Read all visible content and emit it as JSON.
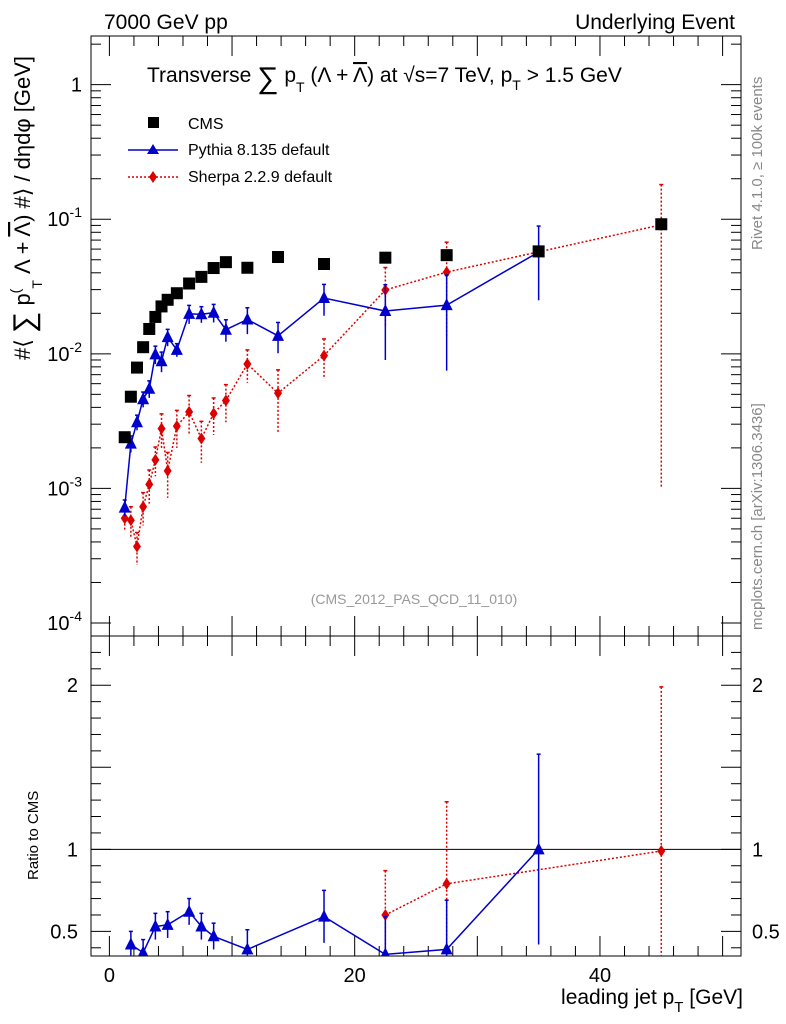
{
  "header": {
    "energy": "7000 GeV pp",
    "process": "Underlying Event"
  },
  "side_labels": {
    "rivet": "Rivet 4.1.0, ≥ 100k events",
    "source": "mcplots.cern.ch [arXiv:1306.3436]"
  },
  "chart_data": [
    {
      "type": "scatter",
      "title": "Transverse ∑ pT (Λ + Λ̅) at √s=7 TeV, pT > 1.5 GeV",
      "ylabel": "#⟨ ∑ pT (Λ + Λ̅) #⟩ / dηdφ [GeV]",
      "xlabel": "",
      "xlim": [
        -1.5,
        51.5
      ],
      "ylim": [
        8e-05,
        2.3
      ],
      "yscale": "log",
      "annotation": "(CMS_2012_PAS_QCD_11_010)",
      "yticks": [
        {
          "value": 1,
          "mant": "1",
          "exp": ""
        },
        {
          "value": 0.1,
          "mant": "10",
          "exp": "-1"
        },
        {
          "value": 0.01,
          "mant": "10",
          "exp": "-2"
        },
        {
          "value": 0.001,
          "mant": "10",
          "exp": "-3"
        },
        {
          "value": 0.0001,
          "mant": "10",
          "exp": "-4"
        }
      ],
      "series": [
        {
          "name": "CMS",
          "style": "square",
          "color": "#000000",
          "line": "none",
          "x": [
            1.25,
            1.75,
            2.25,
            2.75,
            3.25,
            3.75,
            4.25,
            4.75,
            5.5,
            6.5,
            7.5,
            8.5,
            9.5,
            11.25,
            13.75,
            17.5,
            22.5,
            27.5,
            35,
            45
          ],
          "y": [
            0.0024,
            0.0048,
            0.0079,
            0.0112,
            0.0153,
            0.0188,
            0.0225,
            0.0252,
            0.0282,
            0.0333,
            0.0373,
            0.0434,
            0.048,
            0.0436,
            0.0524,
            0.0465,
            0.0518,
            0.0541,
            0.0577,
            0.0918
          ],
          "err": [
            0,
            0,
            0,
            0,
            0,
            0,
            0,
            0,
            0,
            0,
            0,
            0,
            0,
            0,
            0,
            0,
            0,
            0,
            0,
            0
          ]
        },
        {
          "name": "Pythia 8.135 default",
          "style": "triangle",
          "color": "#0000cc",
          "line": "solid",
          "x": [
            1.25,
            1.75,
            2.25,
            2.75,
            3.25,
            3.75,
            4.25,
            4.75,
            5.5,
            6.5,
            7.5,
            8.5,
            9.5,
            11.25,
            13.75,
            17.5,
            22.5,
            27.5,
            35
          ],
          "y": [
            0.00072,
            0.00215,
            0.0031,
            0.0046,
            0.0055,
            0.0099,
            0.0088,
            0.0133,
            0.0107,
            0.0198,
            0.0197,
            0.0202,
            0.0151,
            0.018,
            0.0136,
            0.026,
            0.0208,
            0.023,
            0.057
          ],
          "err": [
            0.0001,
            0.0003,
            0.0004,
            0.0006,
            0.0008,
            0.0015,
            0.0015,
            0.0019,
            0.0012,
            0.0031,
            0.0027,
            0.0031,
            0.0028,
            0.004,
            0.0035,
            0.0068,
            0.0118,
            0.0155,
            0.032
          ]
        },
        {
          "name": "Sherpa 2.2.9 default",
          "style": "diamond",
          "color": "#dd0000",
          "line": "dotted",
          "x": [
            1.25,
            1.75,
            2.25,
            2.75,
            3.25,
            3.75,
            4.25,
            4.75,
            5.5,
            6.5,
            7.5,
            8.5,
            9.5,
            11.25,
            13.75,
            17.5,
            22.5,
            27.5,
            45
          ],
          "y": [
            0.0006,
            0.00058,
            0.00037,
            0.00073,
            0.00107,
            0.00163,
            0.00278,
            0.00135,
            0.0029,
            0.0037,
            0.00235,
            0.0036,
            0.0045,
            0.0084,
            0.0051,
            0.0097,
            0.0298,
            0.0405,
            0.091
          ],
          "err": [
            0.00012,
            0.00015,
            0.0001,
            0.0002,
            0.0003,
            0.0004,
            0.0008,
            0.0005,
            0.0009,
            0.0012,
            0.0008,
            0.0011,
            0.0014,
            0.0023,
            0.0025,
            0.0032,
            0.014,
            0.027,
            0.09
          ]
        }
      ]
    },
    {
      "type": "line",
      "title": "",
      "ylabel": "Ratio to CMS",
      "xlabel": "leading jet pT [GeV]",
      "xlim": [
        -1.5,
        51.5
      ],
      "ylim": [
        0.35,
        2.3
      ],
      "reference_line": 1,
      "xticks": [
        "0",
        "20",
        "40"
      ],
      "xtick_values": [
        0,
        20,
        40
      ],
      "yticks": [
        "2",
        "1",
        "0.5"
      ],
      "ytick_values": [
        2,
        1,
        0.5
      ],
      "series": [
        {
          "name": "Pythia 8.135 default",
          "style": "triangle",
          "color": "#0000cc",
          "line": "solid",
          "x": [
            1.75,
            2.75,
            3.75,
            4.75,
            6.5,
            7.5,
            8.5,
            11.25,
            17.5,
            22.5,
            27.5,
            35
          ],
          "y": [
            0.42,
            0.37,
            0.53,
            0.54,
            0.62,
            0.53,
            0.47,
            0.39,
            0.59,
            0.36,
            0.39,
            1.0
          ],
          "err": [
            0.08,
            0.08,
            0.08,
            0.08,
            0.08,
            0.08,
            0.08,
            0.12,
            0.16,
            0.23,
            0.3,
            0.58
          ]
        },
        {
          "name": "Sherpa 2.2.9 default",
          "style": "diamond",
          "color": "#dd0000",
          "line": "dotted",
          "x": [
            22.5,
            27.5,
            45
          ],
          "y": [
            0.6,
            0.79,
            0.99
          ],
          "err": [
            0.27,
            0.5,
            1.0
          ]
        }
      ]
    }
  ]
}
